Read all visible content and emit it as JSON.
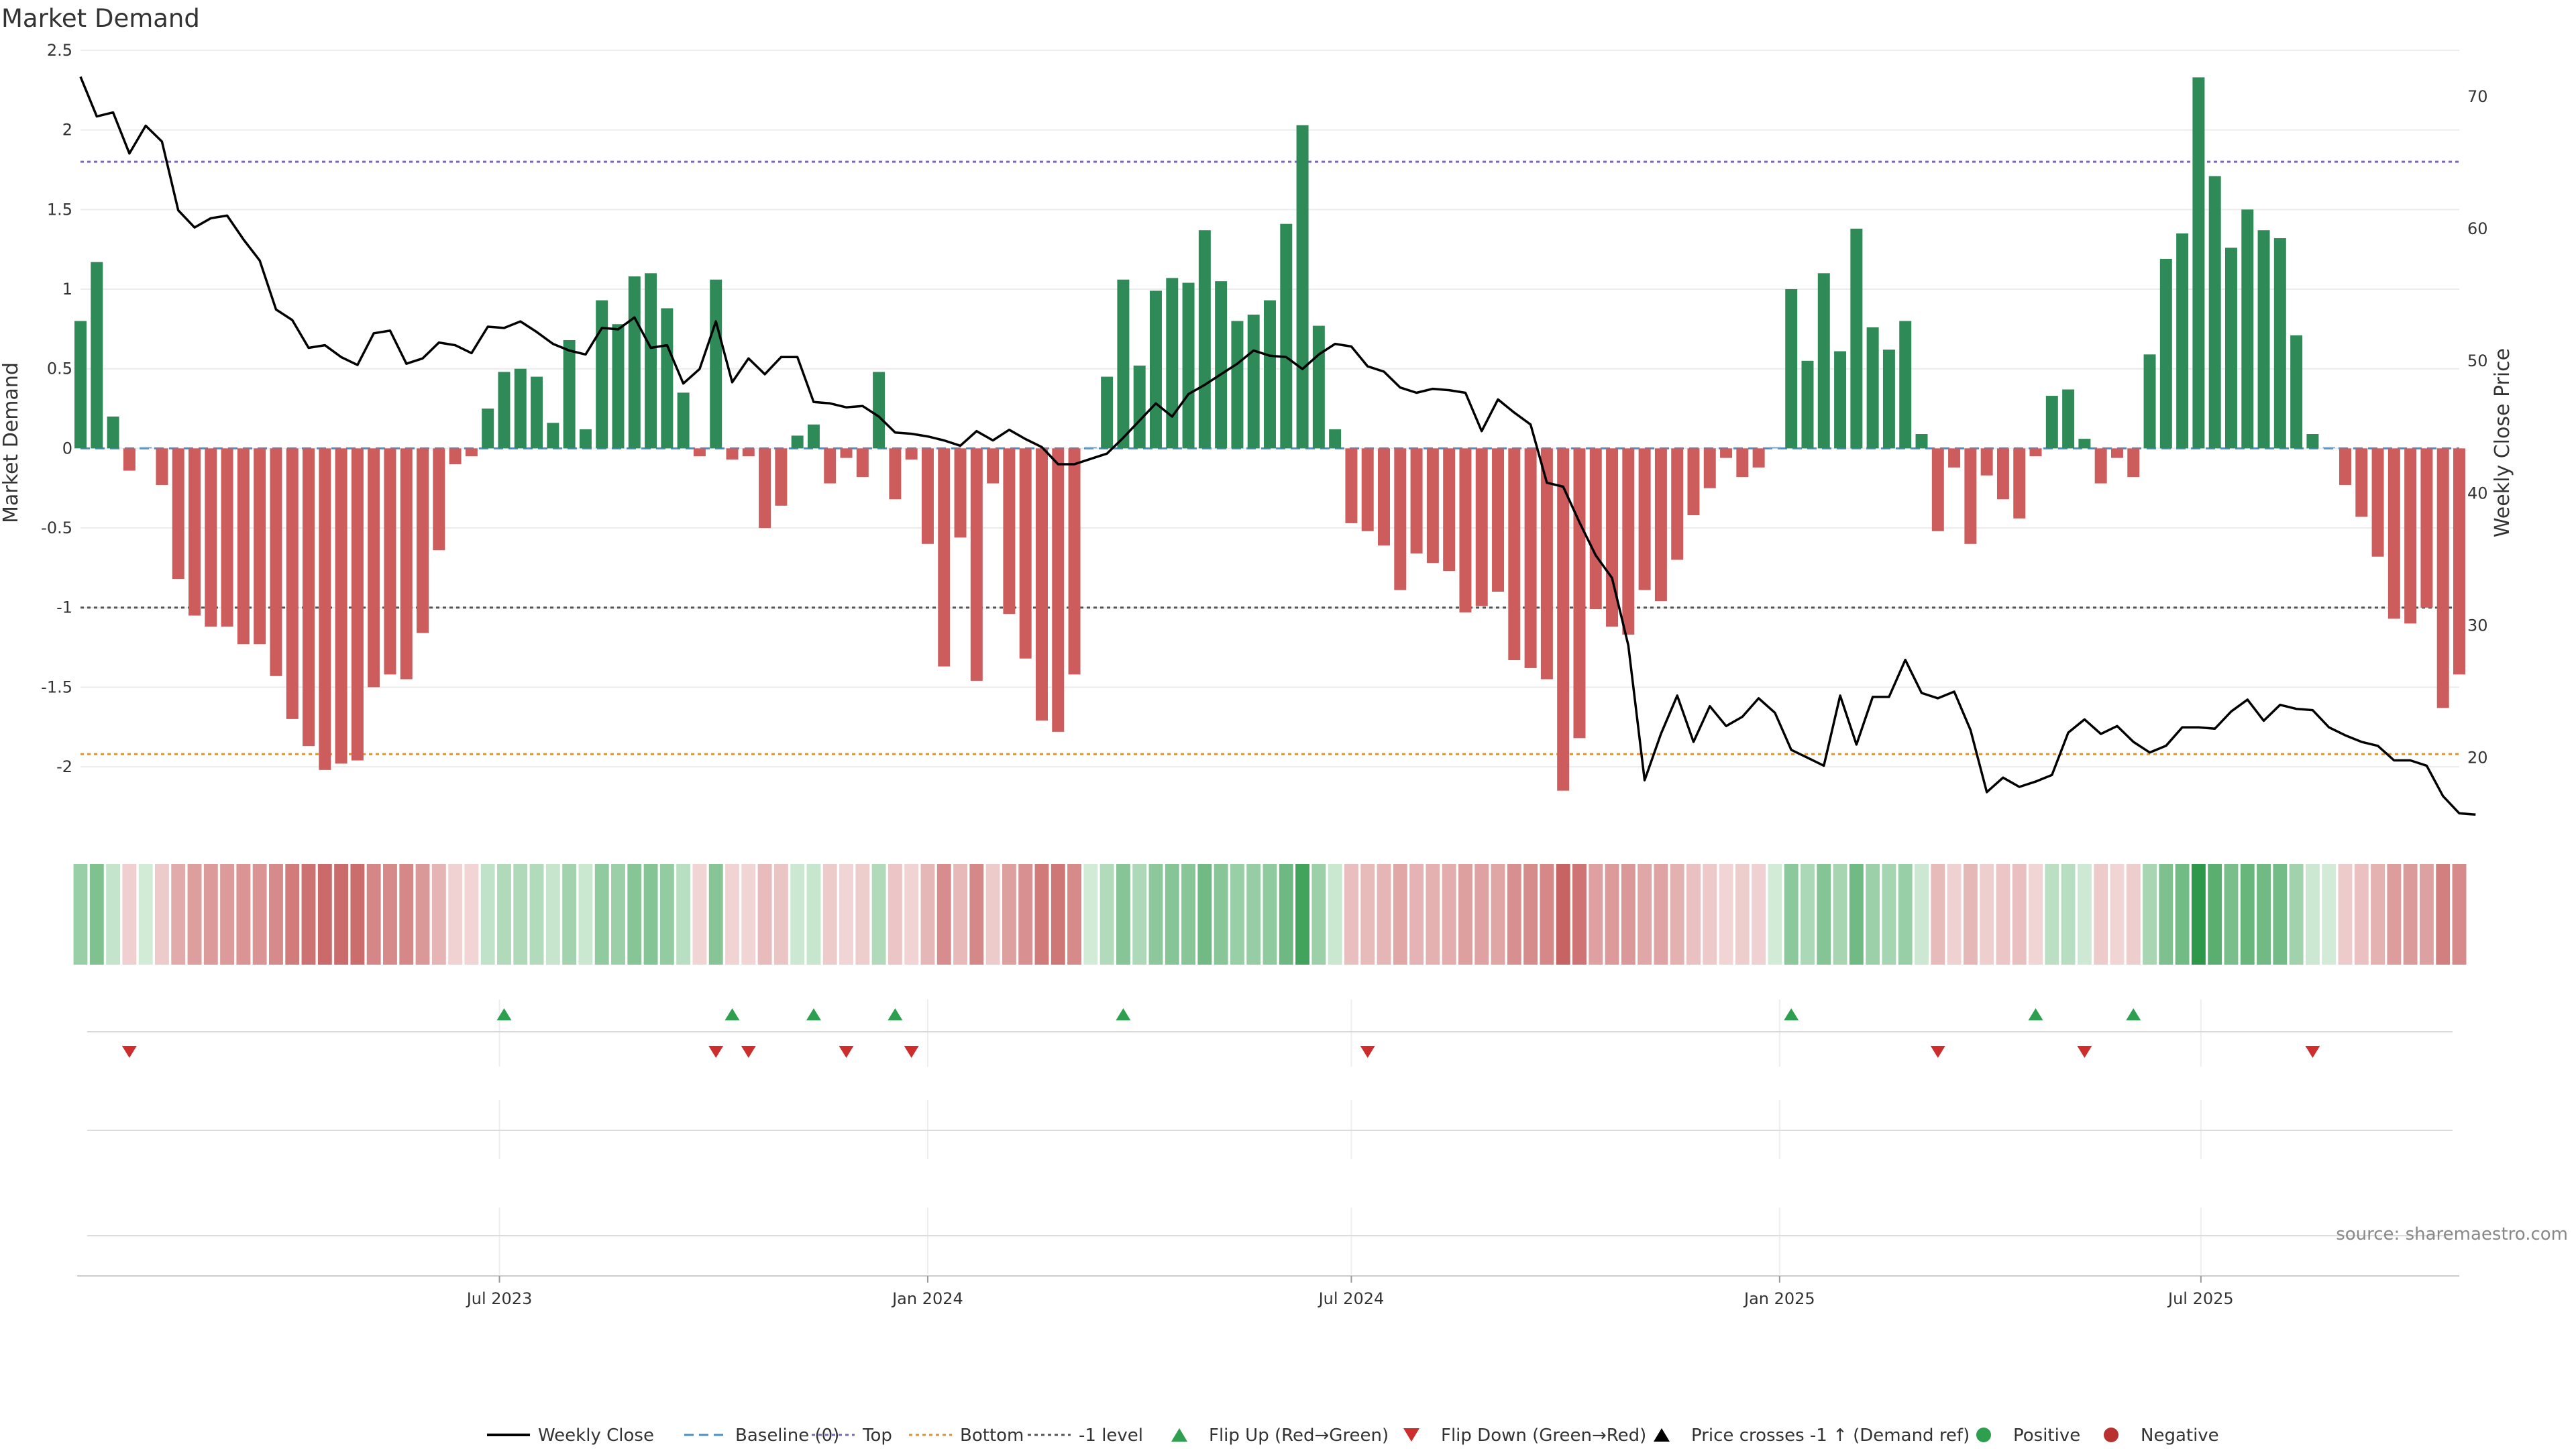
{
  "chart_data": {
    "type": "bar",
    "title": "Market Demand",
    "source_label": "source: sharemaestro.com",
    "ylabel_left": "Market Demand",
    "ylabel_right": "Weekly Close Price",
    "ylim_left": [
      -2.4,
      2.5
    ],
    "yticks_left": [
      2.5,
      2,
      1.5,
      1,
      0.5,
      0,
      -0.5,
      -1,
      -1.5,
      -2
    ],
    "ylim_right": [
      14.5,
      73.5
    ],
    "yticks_right": [
      70,
      60,
      50,
      40,
      30,
      20
    ],
    "xlim": [
      "2023-01-02",
      "2025-10-20"
    ],
    "xticks": [
      {
        "date": "2023-07-01",
        "label": "Jul 2023"
      },
      {
        "date": "2024-01-01",
        "label": "Jan 2024"
      },
      {
        "date": "2024-07-01",
        "label": "Jul 2024"
      },
      {
        "date": "2025-01-01",
        "label": "Jan 2025"
      },
      {
        "date": "2025-07-01",
        "label": "Jul 2025"
      }
    ],
    "start_date": "2023-01-02",
    "interval": "weekly",
    "reference_lines": [
      {
        "name": "Top",
        "value": 1.8,
        "color": "#7b68b5"
      },
      {
        "name": "Bottom",
        "value": -1.92,
        "color": "#e0922f"
      },
      {
        "name": "-1 level",
        "value": -1,
        "color": "#555555"
      },
      {
        "name": "Baseline (0)",
        "value": 0,
        "color": "#4a90c8"
      }
    ],
    "series": [
      {
        "name": "Market Demand",
        "kind": "bar",
        "values": [
          0.8,
          1.17,
          0.2,
          -0.14,
          0,
          -0.23,
          -0.82,
          -1.05,
          -1.12,
          -1.12,
          -1.23,
          -1.23,
          -1.43,
          -1.7,
          -1.87,
          -2.02,
          -1.98,
          -1.96,
          -1.5,
          -1.42,
          -1.45,
          -1.16,
          -0.64,
          -0.1,
          -0.05,
          0.25,
          0.48,
          0.5,
          0.45,
          0.16,
          0.68,
          0.12,
          0.93,
          0.78,
          1.08,
          1.1,
          0.88,
          0.35,
          -0.05,
          1.06,
          -0.07,
          -0.05,
          -0.5,
          -0.36,
          0.08,
          0.15,
          -0.22,
          -0.06,
          -0.18,
          0.48,
          -0.32,
          -0.07,
          -0.6,
          -1.37,
          -0.56,
          -1.46,
          -0.22,
          -1.04,
          -1.32,
          -1.71,
          -1.78,
          -1.42,
          0,
          0.45,
          1.06,
          0.52,
          0.99,
          1.07,
          1.04,
          1.37,
          1.05,
          0.8,
          0.84,
          0.93,
          1.41,
          2.03,
          0.77,
          0.12,
          -0.47,
          -0.52,
          -0.61,
          -0.89,
          -0.66,
          -0.72,
          -0.77,
          -1.03,
          -0.99,
          -0.9,
          -1.33,
          -1.38,
          -1.45,
          -2.15,
          -1.82,
          -1.01,
          -1.12,
          -1.17,
          -0.89,
          -0.96,
          -0.7,
          -0.42,
          -0.25,
          -0.06,
          -0.18,
          -0.12,
          0,
          1.0,
          0.55,
          1.1,
          0.61,
          1.38,
          0.76,
          0.62,
          0.8,
          0.09,
          -0.52,
          -0.12,
          -0.6,
          -0.17,
          -0.32,
          -0.44,
          -0.05,
          0.33,
          0.37,
          0.06,
          -0.22,
          -0.06,
          -0.18,
          0.59,
          1.19,
          1.35,
          2.33,
          1.71,
          1.26,
          1.5,
          1.37,
          1.32,
          0.71,
          0.09,
          0,
          -0.23,
          -0.43,
          -0.68,
          -1.07,
          -1.1,
          -1.0,
          -1.63,
          -1.42
        ]
      },
      {
        "name": "Weekly Close",
        "kind": "line",
        "color": "#000000",
        "values": [
          71.5,
          68.5,
          68.8,
          65.7,
          67.8,
          66.6,
          61.4,
          60.1,
          60.8,
          61.0,
          59.2,
          57.6,
          53.9,
          53.1,
          51.0,
          51.2,
          50.3,
          49.7,
          52.1,
          52.3,
          49.8,
          50.2,
          51.4,
          51.2,
          50.6,
          52.6,
          52.5,
          53.0,
          52.2,
          51.3,
          50.8,
          50.5,
          52.5,
          52.4,
          53.3,
          51.0,
          51.2,
          48.3,
          49.4,
          53.0,
          48.4,
          50.2,
          49.0,
          50.3,
          50.3,
          46.9,
          46.8,
          46.5,
          46.6,
          45.8,
          44.6,
          44.5,
          44.3,
          44.0,
          43.6,
          44.7,
          44.0,
          44.8,
          44.1,
          43.5,
          42.2,
          42.2,
          42.6,
          43.0,
          44.2,
          45.5,
          46.8,
          45.8,
          47.5,
          48.2,
          49.0,
          49.8,
          50.8,
          50.4,
          50.3,
          49.4,
          50.5,
          51.3,
          51.1,
          49.6,
          49.2,
          48.0,
          47.6,
          47.9,
          47.8,
          47.6,
          44.7,
          47.1,
          46.1,
          45.2,
          40.8,
          40.5,
          37.8,
          35.3,
          33.6,
          28.5,
          18.3,
          21.8,
          24.7,
          21.2,
          23.9,
          22.4,
          23.1,
          24.5,
          23.4,
          20.6,
          20.0,
          19.4,
          24.7,
          21.0,
          24.6,
          24.6,
          27.4,
          24.9,
          24.5,
          25.0,
          22.1,
          17.4,
          18.5,
          17.8,
          18.2,
          18.7,
          21.9,
          22.9,
          21.8,
          22.4,
          21.2,
          20.4,
          20.9,
          22.3,
          22.3,
          22.2,
          23.5,
          24.4,
          22.8,
          24.0,
          23.7,
          23.6,
          22.3,
          21.7,
          21.2,
          20.9,
          19.8,
          19.8,
          19.4,
          17.1,
          15.8,
          15.7
        ]
      }
    ],
    "flip_up_weeks": [
      26,
      40,
      45,
      50,
      64,
      105,
      120,
      126
    ],
    "flip_down_weeks": [
      3,
      39,
      41,
      47,
      51,
      79,
      114,
      123,
      137
    ],
    "legend": {
      "position": "bottom",
      "items": [
        {
          "label": "Weekly Close",
          "symbol": "line",
          "color": "#000000"
        },
        {
          "label": "Baseline (0)",
          "symbol": "dash",
          "color": "#4a90c8"
        },
        {
          "label": "Top",
          "symbol": "dot",
          "color": "#7b68b5"
        },
        {
          "label": "Bottom",
          "symbol": "dot",
          "color": "#e0922f"
        },
        {
          "label": "-1 level",
          "symbol": "dot",
          "color": "#555555"
        },
        {
          "label": "Flip Up (Red→Green)",
          "symbol": "triangle-up",
          "color": "#2e9e4f"
        },
        {
          "label": "Flip Down (Green→Red)",
          "symbol": "triangle-down",
          "color": "#cc2e2e"
        },
        {
          "label": "Price crosses -1 ↑ (Demand ref)",
          "symbol": "triangle-up",
          "color": "#000000"
        },
        {
          "label": "Positive",
          "symbol": "circle",
          "color": "#2e9e4f"
        },
        {
          "label": "Negative",
          "symbol": "circle",
          "color": "#b83232"
        }
      ]
    },
    "colors": {
      "positive_bar": "#2e8b57",
      "negative_bar": "#cd5c5c",
      "flip_up": "#2e9e4f",
      "flip_down": "#cc2e2e",
      "grid": "#ececec"
    },
    "grid": true
  }
}
